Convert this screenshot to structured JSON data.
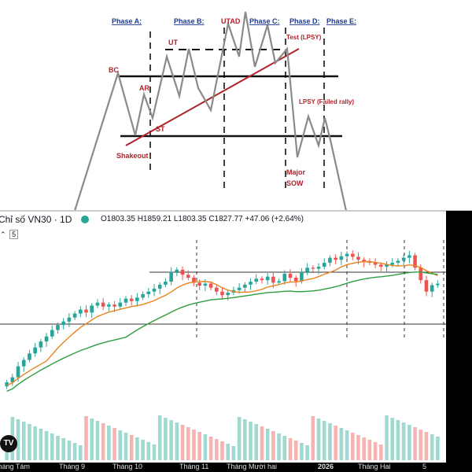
{
  "chart_data": [
    {
      "type": "diagram",
      "title": "",
      "phase_labels": [
        "Phase A:",
        "Phase B:",
        "Phase C:",
        "Phase D:",
        "Phase E:"
      ],
      "annotations": [
        "BC",
        "AR",
        "ST",
        "UT",
        "UTAD",
        "Test (LPSY)",
        "LPSY (Failed rally)",
        "Shakeout",
        "Major",
        "SOW"
      ],
      "colors": {
        "phase": "#1f3a93",
        "annotation": "#b0222a",
        "trendline": "#b0222a",
        "price_path": "#8a8a8a"
      }
    },
    {
      "type": "candlestick",
      "header": {
        "symbol": "Chỉ số VN30 · 1D",
        "ohlc": "O1803.35  H1859.21  L1803.35  C1827.77  +47.06 (+2.64%)",
        "indicator_badge": "5"
      },
      "x_tick_labels": [
        "Tháng Tám",
        "Tháng 9",
        "Tháng 10",
        "Tháng 11",
        "Tháng Mười hai",
        "2026",
        "Tháng Hai",
        "5"
      ],
      "close_path": [
        1630,
        1640,
        1662,
        1675,
        1688,
        1700,
        1712,
        1722,
        1735,
        1745,
        1752,
        1760,
        1768,
        1776,
        1770,
        1784,
        1790,
        1782,
        1786,
        1782,
        1790,
        1798,
        1793,
        1800,
        1807,
        1812,
        1818,
        1826,
        1832,
        1852,
        1856,
        1846,
        1840,
        1830,
        1824,
        1828,
        1820,
        1812,
        1805,
        1810,
        1815,
        1820,
        1826,
        1832,
        1838,
        1835,
        1842,
        1830,
        1833,
        1848,
        1840,
        1833,
        1852,
        1860,
        1858,
        1862,
        1870,
        1880,
        1876,
        1883,
        1888,
        1882,
        1876,
        1872,
        1870,
        1866,
        1862,
        1866,
        1870,
        1874,
        1880,
        1885,
        1860,
        1835,
        1812,
        1825,
        1828
      ],
      "ma_fast_colors": "#e8831e",
      "ma_slow_colors": "#2e9e3f",
      "up_color": "#26a69a",
      "down_color": "#ef5350",
      "price_range": [
        1600,
        1900
      ]
    }
  ]
}
